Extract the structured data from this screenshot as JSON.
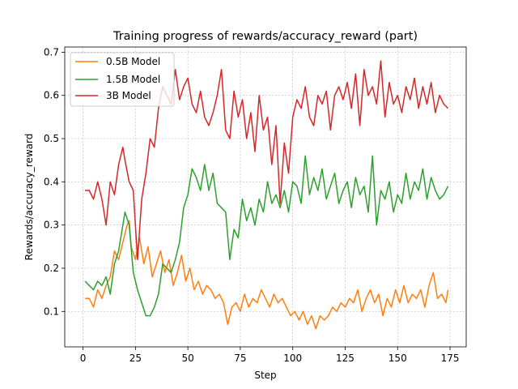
{
  "chart_data": {
    "type": "line",
    "title": "Training progress of rewards/accuracy_reward (part)",
    "xlabel": "Step",
    "ylabel": "Rewards/accuracy_reward",
    "xlim": [
      -8.7,
      182.7
    ],
    "ylim": [
      0.018,
      0.712
    ],
    "xticks": [
      0,
      25,
      50,
      75,
      100,
      125,
      150,
      175
    ],
    "yticks": [
      0.1,
      0.2,
      0.3,
      0.4,
      0.5,
      0.6,
      0.7
    ],
    "grid": true,
    "legend_position": "upper-left",
    "colors": {
      "0.5B Model": "#ff7f0e",
      "1.5B Model": "#2ca02c",
      "3B Model": "#d62728"
    },
    "series": [
      {
        "name": "0.5B Model",
        "color": "#ff7f0e",
        "x": [
          1,
          3,
          5,
          7,
          9,
          11,
          13,
          15,
          17,
          19,
          20,
          21,
          22,
          23,
          25,
          27,
          29,
          31,
          33,
          35,
          37,
          39,
          41,
          43,
          45,
          47,
          49,
          51,
          53,
          55,
          57,
          59,
          61,
          63,
          65,
          67,
          69,
          71,
          73,
          75,
          77,
          79,
          81,
          83,
          85,
          87,
          89,
          91,
          93,
          95,
          97,
          99,
          101,
          103,
          105,
          107,
          109,
          111,
          113,
          115,
          117,
          119,
          121,
          123,
          125,
          127,
          129,
          131,
          133,
          135,
          137,
          139,
          141,
          143,
          145,
          147,
          149,
          151,
          153,
          155,
          157,
          159,
          161,
          163,
          165,
          167,
          169,
          171,
          173,
          174
        ],
        "values": [
          0.13,
          0.13,
          0.11,
          0.15,
          0.13,
          0.16,
          0.18,
          0.24,
          0.22,
          0.26,
          0.28,
          0.3,
          0.31,
          0.25,
          0.22,
          0.27,
          0.21,
          0.25,
          0.18,
          0.21,
          0.24,
          0.19,
          0.22,
          0.16,
          0.19,
          0.23,
          0.17,
          0.2,
          0.15,
          0.17,
          0.14,
          0.16,
          0.15,
          0.13,
          0.14,
          0.12,
          0.07,
          0.11,
          0.12,
          0.1,
          0.14,
          0.11,
          0.13,
          0.12,
          0.15,
          0.13,
          0.11,
          0.14,
          0.12,
          0.13,
          0.11,
          0.09,
          0.1,
          0.08,
          0.1,
          0.07,
          0.09,
          0.06,
          0.09,
          0.08,
          0.09,
          0.11,
          0.1,
          0.12,
          0.11,
          0.13,
          0.12,
          0.15,
          0.1,
          0.13,
          0.15,
          0.12,
          0.14,
          0.09,
          0.13,
          0.11,
          0.15,
          0.12,
          0.16,
          0.12,
          0.14,
          0.13,
          0.15,
          0.11,
          0.16,
          0.19,
          0.13,
          0.14,
          0.12,
          0.15
        ]
      },
      {
        "name": "1.5B Model",
        "color": "#2ca02c",
        "x": [
          1,
          3,
          5,
          7,
          9,
          11,
          13,
          15,
          17,
          19,
          20,
          22,
          24,
          26,
          28,
          30,
          32,
          34,
          36,
          38,
          40,
          42,
          44,
          46,
          48,
          50,
          52,
          54,
          56,
          58,
          60,
          62,
          64,
          66,
          68,
          70,
          72,
          74,
          76,
          78,
          80,
          82,
          84,
          86,
          88,
          90,
          92,
          94,
          96,
          98,
          100,
          102,
          104,
          106,
          108,
          110,
          112,
          114,
          116,
          118,
          120,
          122,
          124,
          126,
          128,
          130,
          132,
          134,
          136,
          138,
          140,
          142,
          144,
          146,
          148,
          150,
          152,
          154,
          156,
          158,
          160,
          162,
          164,
          166,
          168,
          170,
          172,
          174
        ],
        "values": [
          0.17,
          0.16,
          0.15,
          0.17,
          0.16,
          0.18,
          0.14,
          0.21,
          0.24,
          0.3,
          0.33,
          0.3,
          0.19,
          0.15,
          0.12,
          0.09,
          0.09,
          0.11,
          0.14,
          0.21,
          0.2,
          0.19,
          0.22,
          0.26,
          0.34,
          0.37,
          0.43,
          0.41,
          0.38,
          0.44,
          0.38,
          0.42,
          0.35,
          0.34,
          0.33,
          0.22,
          0.29,
          0.27,
          0.36,
          0.31,
          0.34,
          0.3,
          0.36,
          0.33,
          0.4,
          0.35,
          0.37,
          0.34,
          0.38,
          0.33,
          0.4,
          0.39,
          0.35,
          0.46,
          0.37,
          0.41,
          0.38,
          0.43,
          0.36,
          0.39,
          0.42,
          0.35,
          0.38,
          0.4,
          0.34,
          0.41,
          0.37,
          0.39,
          0.33,
          0.46,
          0.3,
          0.38,
          0.36,
          0.4,
          0.33,
          0.37,
          0.35,
          0.42,
          0.36,
          0.4,
          0.38,
          0.43,
          0.36,
          0.41,
          0.38,
          0.36,
          0.37,
          0.39
        ]
      },
      {
        "name": "3B Model",
        "color": "#d62728",
        "x": [
          1,
          3,
          5,
          7,
          9,
          11,
          13,
          15,
          17,
          19,
          20,
          22,
          24,
          26,
          28,
          30,
          32,
          34,
          36,
          38,
          40,
          42,
          44,
          46,
          48,
          50,
          52,
          54,
          56,
          58,
          60,
          62,
          64,
          66,
          68,
          70,
          72,
          74,
          76,
          78,
          80,
          82,
          84,
          86,
          88,
          90,
          92,
          94,
          96,
          98,
          100,
          102,
          104,
          106,
          108,
          110,
          112,
          114,
          116,
          118,
          120,
          122,
          124,
          126,
          128,
          130,
          132,
          134,
          136,
          138,
          140,
          142,
          144,
          146,
          148,
          150,
          152,
          154,
          156,
          158,
          160,
          162,
          164,
          166,
          168,
          170,
          172,
          174
        ],
        "values": [
          0.38,
          0.38,
          0.36,
          0.4,
          0.36,
          0.3,
          0.4,
          0.37,
          0.44,
          0.48,
          0.45,
          0.4,
          0.38,
          0.22,
          0.36,
          0.42,
          0.5,
          0.48,
          0.57,
          0.62,
          0.6,
          0.58,
          0.66,
          0.59,
          0.62,
          0.64,
          0.58,
          0.56,
          0.61,
          0.55,
          0.53,
          0.56,
          0.6,
          0.66,
          0.52,
          0.5,
          0.61,
          0.55,
          0.59,
          0.5,
          0.56,
          0.47,
          0.6,
          0.52,
          0.55,
          0.44,
          0.53,
          0.35,
          0.49,
          0.42,
          0.55,
          0.59,
          0.57,
          0.62,
          0.55,
          0.53,
          0.6,
          0.58,
          0.61,
          0.52,
          0.6,
          0.62,
          0.59,
          0.63,
          0.57,
          0.65,
          0.53,
          0.66,
          0.6,
          0.62,
          0.58,
          0.68,
          0.55,
          0.63,
          0.58,
          0.6,
          0.56,
          0.62,
          0.59,
          0.64,
          0.57,
          0.62,
          0.58,
          0.63,
          0.56,
          0.6,
          0.58,
          0.57
        ]
      }
    ]
  }
}
